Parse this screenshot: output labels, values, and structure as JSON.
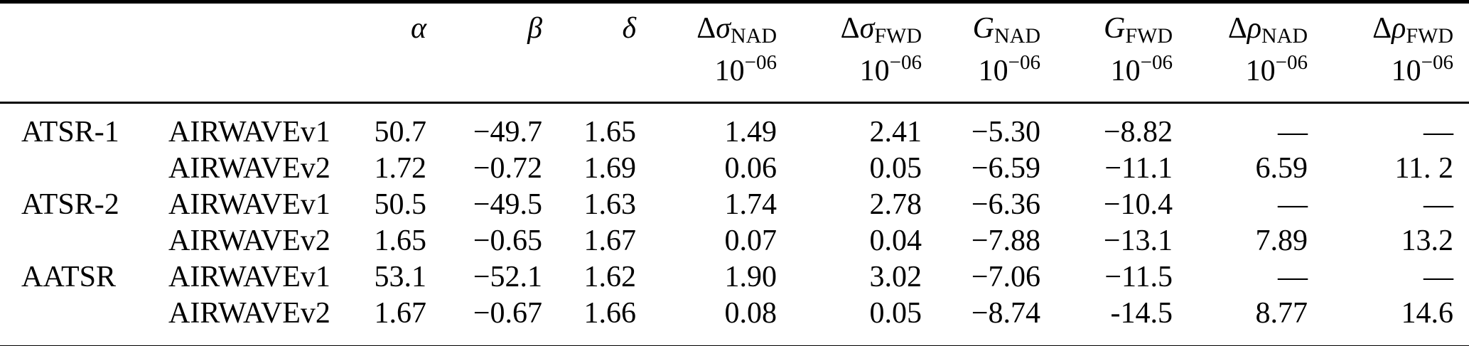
{
  "table": {
    "headers": [
      {
        "prefix": "",
        "symbol": "α",
        "subscript": "",
        "unit_base": "",
        "unit_exp": ""
      },
      {
        "prefix": "",
        "symbol": "β",
        "subscript": "",
        "unit_base": "",
        "unit_exp": ""
      },
      {
        "prefix": "",
        "symbol": "δ",
        "subscript": "",
        "unit_base": "",
        "unit_exp": ""
      },
      {
        "prefix": "Δ",
        "symbol": "σ",
        "subscript": "NAD",
        "unit_base": "10",
        "unit_exp": "−06"
      },
      {
        "prefix": "Δ",
        "symbol": "σ",
        "subscript": "FWD",
        "unit_base": "10",
        "unit_exp": "−06"
      },
      {
        "prefix": "",
        "symbol": "G",
        "subscript": "NAD",
        "unit_base": "10",
        "unit_exp": "−06"
      },
      {
        "prefix": "",
        "symbol": "G",
        "subscript": "FWD",
        "unit_base": "10",
        "unit_exp": "−06"
      },
      {
        "prefix": "Δ",
        "symbol": "ρ",
        "subscript": "NAD",
        "unit_base": "10",
        "unit_exp": "−06"
      },
      {
        "prefix": "Δ",
        "symbol": "ρ",
        "subscript": "FWD",
        "unit_base": "10",
        "unit_exp": "−06"
      }
    ],
    "rows": [
      {
        "sensor": "ATSR-1",
        "version": "AIRWAVEv1",
        "values": [
          "50.7",
          "−49.7",
          "1.65",
          "1.49",
          "2.41",
          "−5.30",
          "−8.82",
          "—",
          "—"
        ]
      },
      {
        "sensor": "",
        "version": "AIRWAVEv2",
        "values": [
          "1.72",
          "−0.72",
          "1.69",
          "0.06",
          "0.05",
          "−6.59",
          "−11.1",
          "6.59",
          "11. 2"
        ]
      },
      {
        "sensor": "ATSR-2",
        "version": "AIRWAVEv1",
        "values": [
          "50.5",
          "−49.5",
          "1.63",
          "1.74",
          "2.78",
          "−6.36",
          "−10.4",
          "—",
          "—"
        ]
      },
      {
        "sensor": "",
        "version": "AIRWAVEv2",
        "values": [
          "1.65",
          "−0.65",
          "1.67",
          "0.07",
          "0.04",
          "−7.88",
          "−13.1",
          "7.89",
          "13.2"
        ]
      },
      {
        "sensor": "AATSR",
        "version": "AIRWAVEv1",
        "values": [
          "53.1",
          "−52.1",
          "1.62",
          "1.90",
          "3.02",
          "−7.06",
          "−11.5",
          "—",
          "—"
        ]
      },
      {
        "sensor": "",
        "version": "AIRWAVEv2",
        "values": [
          "1.67",
          "−0.67",
          "1.66",
          "0.08",
          "0.05",
          "−8.74",
          "-14.5",
          "8.77",
          "14.6"
        ]
      }
    ]
  },
  "colors": {
    "text": "#000000",
    "background": "#ffffff",
    "rule": "#000000"
  }
}
